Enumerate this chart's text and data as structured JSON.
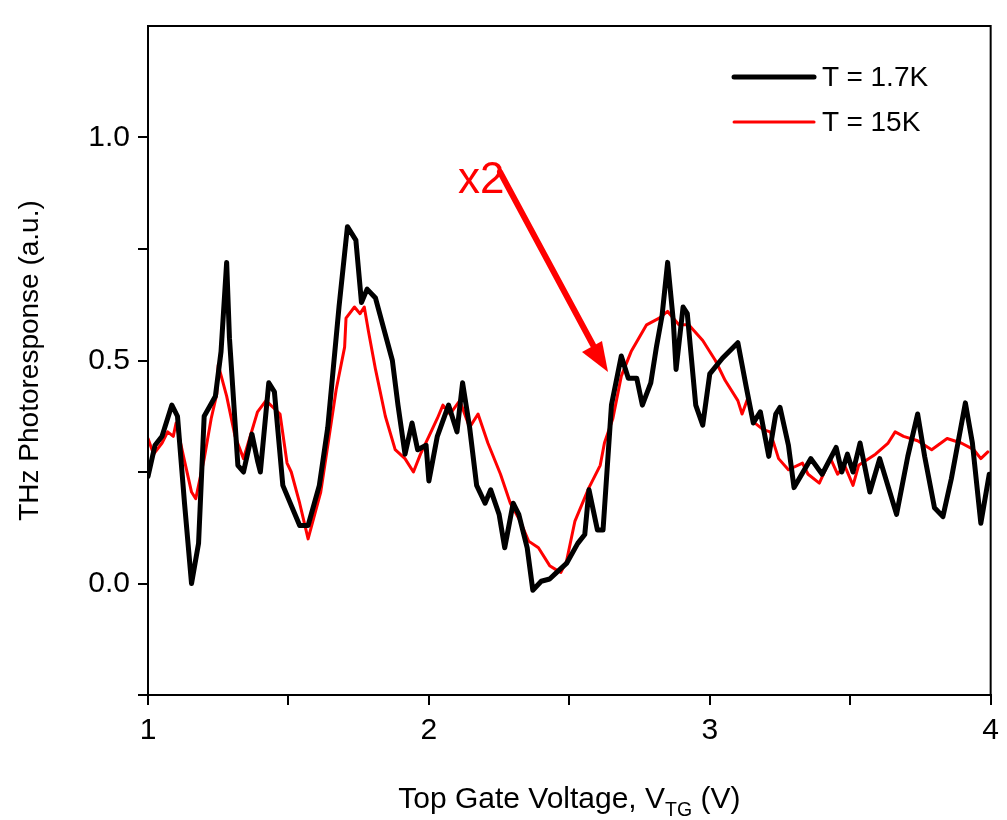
{
  "chart_data": {
    "type": "line",
    "xlabel": "Top Gate Voltage, V$_{TG}$ (V)",
    "ylabel": "THz Photoresponse (a.u.)",
    "xlim": [
      1,
      4
    ],
    "ylim": [
      -0.25,
      1.25
    ],
    "xticks": [
      1,
      {
        "value": 1.5,
        "label": null
      },
      2,
      {
        "value": 2.5,
        "label": null
      },
      3,
      {
        "value": 3.5,
        "label": null
      },
      4
    ],
    "yticks": [
      {
        "value": -0.25,
        "label": null
      },
      "0.0",
      {
        "value": 0.25,
        "label": null
      },
      {
        "value": 0.5,
        "label": "0.5"
      },
      {
        "value": 0.75,
        "label": null
      },
      {
        "value": 1,
        "label": "1.0"
      }
    ],
    "grid": false,
    "legend": "top right",
    "annotations": [
      "x2"
    ],
    "series": [
      {
        "name": "T = 1.7K",
        "color": "#000000",
        "x": [
          1.0,
          1.025,
          1.05,
          1.085,
          1.105,
          1.13,
          1.155,
          1.18,
          1.2,
          1.24,
          1.26,
          1.28,
          1.29,
          1.32,
          1.34,
          1.37,
          1.39,
          1.4,
          1.43,
          1.45,
          1.48,
          1.54,
          1.57,
          1.61,
          1.64,
          1.68,
          1.71,
          1.74,
          1.76,
          1.78,
          1.81,
          1.84,
          1.87,
          1.89,
          1.915,
          1.94,
          1.96,
          1.99,
          2.0,
          2.03,
          2.07,
          2.1,
          2.12,
          2.145,
          2.17,
          2.2,
          2.22,
          2.25,
          2.27,
          2.3,
          2.32,
          2.35,
          2.37,
          2.4,
          2.43,
          2.455,
          2.49,
          2.53,
          2.555,
          2.57,
          2.6,
          2.62,
          2.65,
          2.685,
          2.71,
          2.74,
          2.76,
          2.79,
          2.81,
          2.83,
          2.85,
          2.87,
          2.88,
          2.905,
          2.92,
          2.95,
          2.975,
          3.0,
          3.045,
          3.1,
          3.13,
          3.155,
          3.18,
          3.21,
          3.235,
          3.25,
          3.28,
          3.3,
          3.36,
          3.4,
          3.45,
          3.47,
          3.49,
          3.51,
          3.535,
          3.57,
          3.605,
          3.665,
          3.705,
          3.74,
          3.765,
          3.8,
          3.83,
          3.86,
          3.91,
          3.935,
          3.965,
          3.995
        ],
        "values": [
          0.24,
          0.31,
          0.33,
          0.4,
          0.375,
          0.18,
          0.0,
          0.09,
          0.375,
          0.42,
          0.52,
          0.72,
          0.55,
          0.265,
          0.25,
          0.335,
          0.275,
          0.25,
          0.45,
          0.43,
          0.22,
          0.13,
          0.13,
          0.22,
          0.35,
          0.62,
          0.8,
          0.77,
          0.63,
          0.66,
          0.64,
          0.57,
          0.5,
          0.4,
          0.29,
          0.36,
          0.3,
          0.31,
          0.23,
          0.33,
          0.4,
          0.34,
          0.45,
          0.35,
          0.22,
          0.18,
          0.21,
          0.155,
          0.08,
          0.18,
          0.155,
          0.08,
          -0.015,
          0.005,
          0.01,
          0.025,
          0.045,
          0.09,
          0.11,
          0.21,
          0.12,
          0.12,
          0.4,
          0.51,
          0.46,
          0.46,
          0.4,
          0.45,
          0.53,
          0.6,
          0.72,
          0.59,
          0.48,
          0.62,
          0.605,
          0.4,
          0.355,
          0.47,
          0.505,
          0.54,
          0.44,
          0.36,
          0.385,
          0.285,
          0.38,
          0.395,
          0.31,
          0.215,
          0.28,
          0.245,
          0.305,
          0.25,
          0.29,
          0.25,
          0.315,
          0.205,
          0.28,
          0.155,
          0.285,
          0.38,
          0.285,
          0.17,
          0.15,
          0.235,
          0.405,
          0.315,
          0.135,
          0.245
        ]
      },
      {
        "name": "T = 15K",
        "color": "#ff0000",
        "x": [
          1.0,
          1.02,
          1.05,
          1.07,
          1.09,
          1.1,
          1.13,
          1.155,
          1.17,
          1.2,
          1.225,
          1.245,
          1.25,
          1.28,
          1.31,
          1.34,
          1.39,
          1.42,
          1.47,
          1.495,
          1.51,
          1.54,
          1.57,
          1.6,
          1.615,
          1.645,
          1.67,
          1.7,
          1.705,
          1.735,
          1.755,
          1.77,
          1.785,
          1.81,
          1.845,
          1.88,
          1.915,
          1.945,
          1.97,
          2.0,
          2.03,
          2.05,
          2.075,
          2.11,
          2.145,
          2.175,
          2.21,
          2.255,
          2.29,
          2.325,
          2.355,
          2.39,
          2.43,
          2.455,
          2.47,
          2.49,
          2.52,
          2.57,
          2.61,
          2.625,
          2.655,
          2.685,
          2.72,
          2.775,
          2.82,
          2.85,
          2.89,
          2.925,
          2.975,
          3.02,
          3.055,
          3.1,
          3.115,
          3.135,
          3.16,
          3.19,
          3.215,
          3.245,
          3.28,
          3.33,
          3.35,
          3.39,
          3.43,
          3.455,
          3.48,
          3.51,
          3.53,
          3.59,
          3.635,
          3.66,
          3.69,
          3.74,
          3.79,
          3.845,
          3.895,
          3.94,
          3.965,
          3.99
        ],
        "values": [
          0.325,
          0.29,
          0.315,
          0.34,
          0.33,
          0.36,
          0.275,
          0.205,
          0.19,
          0.28,
          0.37,
          0.425,
          0.49,
          0.42,
          0.33,
          0.28,
          0.385,
          0.41,
          0.38,
          0.27,
          0.25,
          0.18,
          0.1,
          0.17,
          0.205,
          0.33,
          0.435,
          0.53,
          0.595,
          0.62,
          0.605,
          0.62,
          0.565,
          0.48,
          0.375,
          0.3,
          0.28,
          0.25,
          0.29,
          0.33,
          0.37,
          0.4,
          0.38,
          0.41,
          0.35,
          0.38,
          0.315,
          0.245,
          0.18,
          0.14,
          0.095,
          0.08,
          0.04,
          0.03,
          0.025,
          0.05,
          0.14,
          0.215,
          0.265,
          0.315,
          0.37,
          0.465,
          0.52,
          0.58,
          0.595,
          0.61,
          0.58,
          0.58,
          0.545,
          0.5,
          0.455,
          0.41,
          0.38,
          0.415,
          0.36,
          0.345,
          0.34,
          0.28,
          0.255,
          0.27,
          0.245,
          0.225,
          0.28,
          0.245,
          0.265,
          0.22,
          0.265,
          0.29,
          0.315,
          0.34,
          0.33,
          0.32,
          0.3,
          0.325,
          0.315,
          0.3,
          0.28,
          0.295
        ]
      }
    ]
  }
}
